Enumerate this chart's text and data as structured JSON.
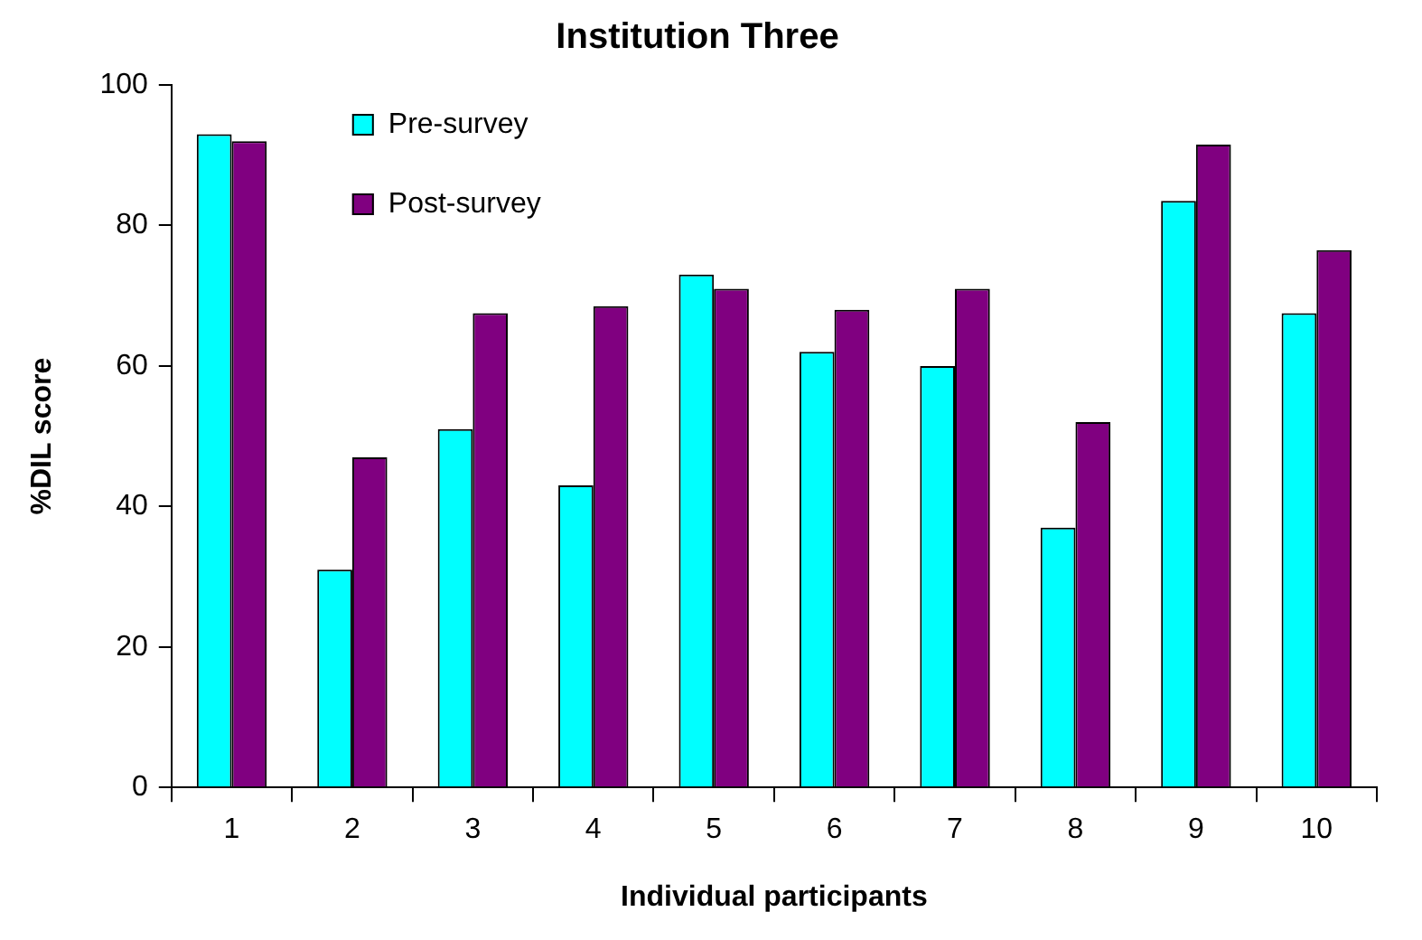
{
  "chart_data": {
    "type": "bar",
    "title": "Institution Three",
    "xlabel": "Individual participants",
    "ylabel": "%DIL score",
    "categories": [
      "1",
      "2",
      "3",
      "4",
      "5",
      "6",
      "7",
      "8",
      "9",
      "10"
    ],
    "series": [
      {
        "name": "Pre-survey",
        "color": "#00ffff",
        "values": [
          93,
          31,
          51,
          43,
          73,
          62,
          60,
          37,
          83.5,
          67.5
        ]
      },
      {
        "name": "Post-survey",
        "color": "#800080",
        "values": [
          92,
          47,
          67.5,
          68.5,
          71,
          68,
          71,
          52,
          91.5,
          76.5
        ]
      }
    ],
    "ylim": [
      0,
      100
    ],
    "yticks": [
      0,
      20,
      40,
      60,
      80,
      100
    ],
    "grid": false,
    "legend": "top left"
  }
}
